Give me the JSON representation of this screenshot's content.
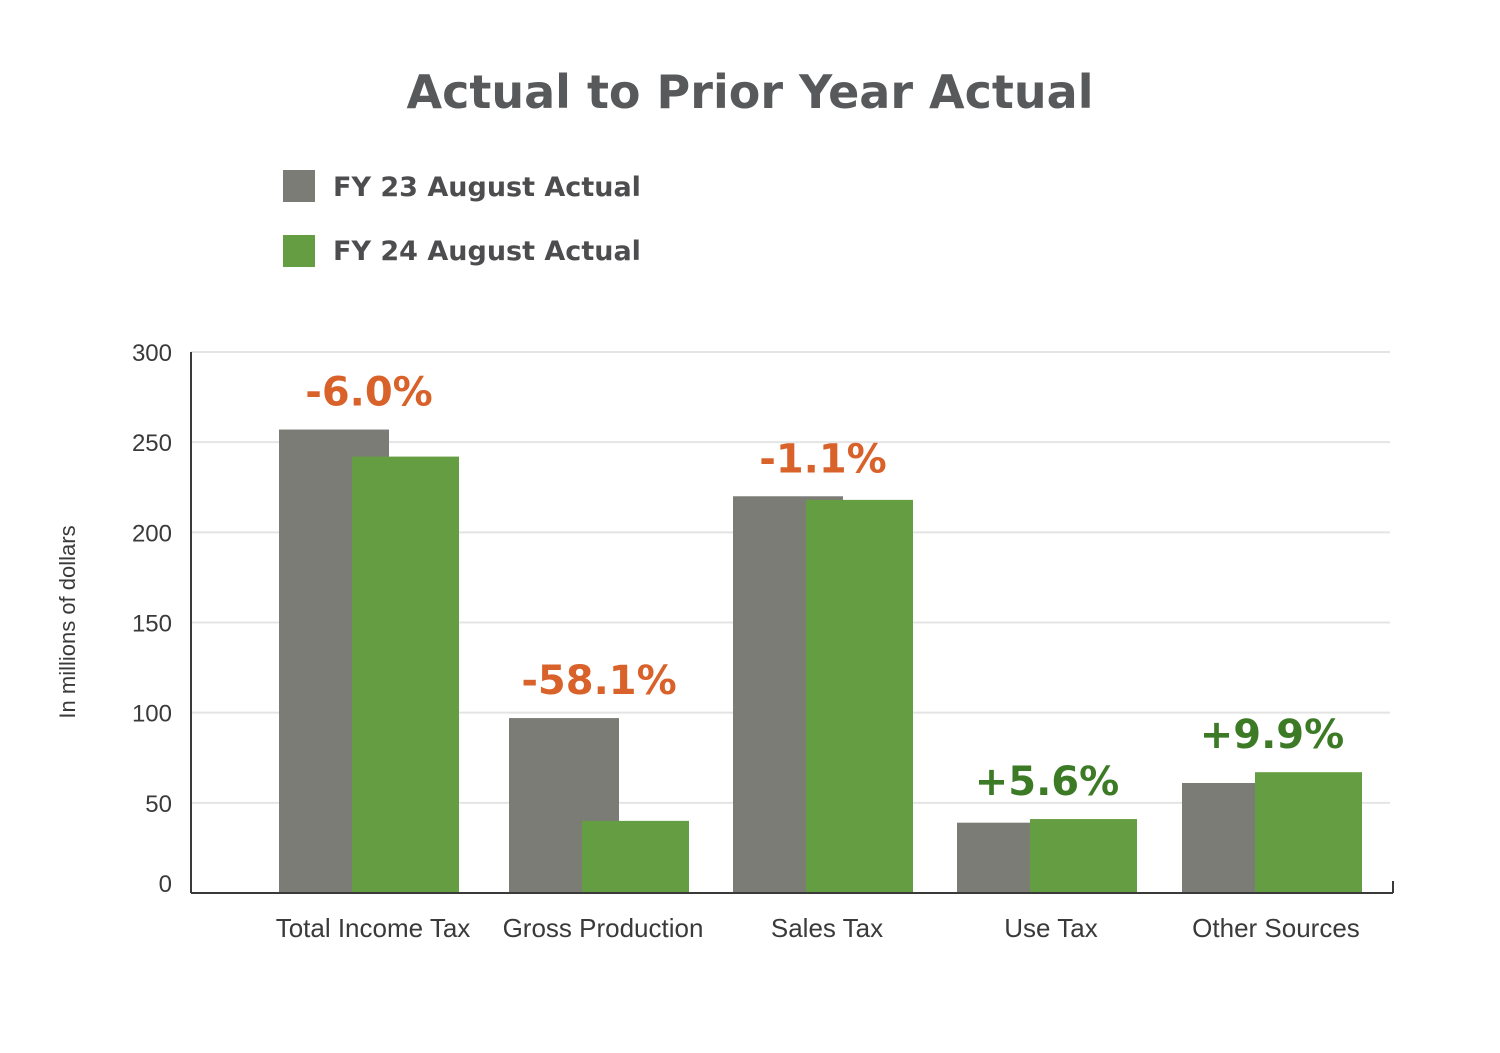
{
  "chart_data": {
    "type": "bar",
    "title": "Actual to Prior Year Actual",
    "ylabel": "In millions of dollars",
    "xlabel": "",
    "ylim": [
      0,
      300
    ],
    "yticks": [
      0,
      50,
      100,
      150,
      200,
      250,
      300
    ],
    "grid": true,
    "legend_position": "top-left",
    "categories": [
      "Total Income Tax",
      "Gross Production",
      "Sales Tax",
      "Use Tax",
      "Other Sources"
    ],
    "series": [
      {
        "name": "FY 23 August Actual",
        "color": "#7c7c77",
        "values": [
          257,
          97,
          220,
          39,
          61
        ]
      },
      {
        "name": "FY 24 August Actual",
        "color": "#659d42",
        "values": [
          242,
          40,
          218,
          41,
          67
        ]
      }
    ],
    "annotations": [
      {
        "category": "Total Income Tax",
        "text": "-6.0%",
        "color": "#d9622b"
      },
      {
        "category": "Gross Production",
        "text": "-58.1%",
        "color": "#d9622b"
      },
      {
        "category": "Sales Tax",
        "text": "-1.1%",
        "color": "#d9622b"
      },
      {
        "category": "Use Tax",
        "text": "+5.6%",
        "color": "#3d7a26"
      },
      {
        "category": "Other Sources",
        "text": "+9.9%",
        "color": "#3d7a26"
      }
    ]
  }
}
